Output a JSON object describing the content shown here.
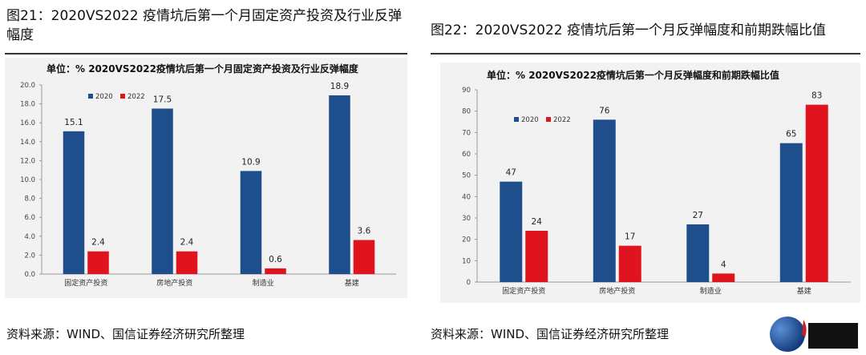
{
  "left": {
    "figure_title": "图21：2020VS2022 疫情坑后第一个月固定资产投资及行业反弹幅度",
    "source": "资料来源：WIND、国信证券经济研究所整理"
  },
  "right": {
    "figure_title": "图22：2020VS2022 疫情坑后第一个月反弹幅度和前期跌幅比值",
    "source": "资料来源：WIND、国信证券经济研究所整理"
  },
  "chart_data": [
    {
      "type": "bar",
      "title": "单位：%   2020VS2022疫情坑后第一个月固定资产投资及行业反弹幅度",
      "categories": [
        "固定资产投资",
        "房地产投资",
        "制造业",
        "基建"
      ],
      "series": [
        {
          "name": "2020",
          "color": "#1f4e8c",
          "values": [
            15.1,
            17.5,
            10.9,
            18.9
          ],
          "labels": [
            "15.1",
            "17.5",
            "10.9",
            "18.9"
          ]
        },
        {
          "name": "2022",
          "color": "#e0141e",
          "values": [
            2.4,
            2.4,
            0.6,
            3.6
          ],
          "labels": [
            "2.4",
            "2.4",
            "0.6",
            "3.6"
          ]
        }
      ],
      "ylim": [
        0,
        20
      ],
      "yticks": [
        "0.0",
        "2.0",
        "4.0",
        "6.0",
        "8.0",
        "10.0",
        "12.0",
        "14.0",
        "16.0",
        "18.0",
        "20.0"
      ],
      "legend": "top-left",
      "grid": false
    },
    {
      "type": "bar",
      "title": "单位：%   2020VS2022疫情坑后第一个月反弹幅度和前期跌幅比值",
      "categories": [
        "固定资产投资",
        "房地产投资",
        "制造业",
        "基建"
      ],
      "series": [
        {
          "name": "2020",
          "color": "#1f4e8c",
          "values": [
            47,
            76,
            27,
            65
          ],
          "labels": [
            "47",
            "76",
            "27",
            "65"
          ]
        },
        {
          "name": "2022",
          "color": "#e0141e",
          "values": [
            24,
            17,
            4,
            83
          ],
          "labels": [
            "24",
            "17",
            "4",
            "83"
          ]
        }
      ],
      "ylim": [
        0,
        90
      ],
      "yticks": [
        "0",
        "10",
        "20",
        "30",
        "40",
        "50",
        "60",
        "70",
        "80",
        "90"
      ],
      "legend": "top-left",
      "grid": false
    }
  ]
}
